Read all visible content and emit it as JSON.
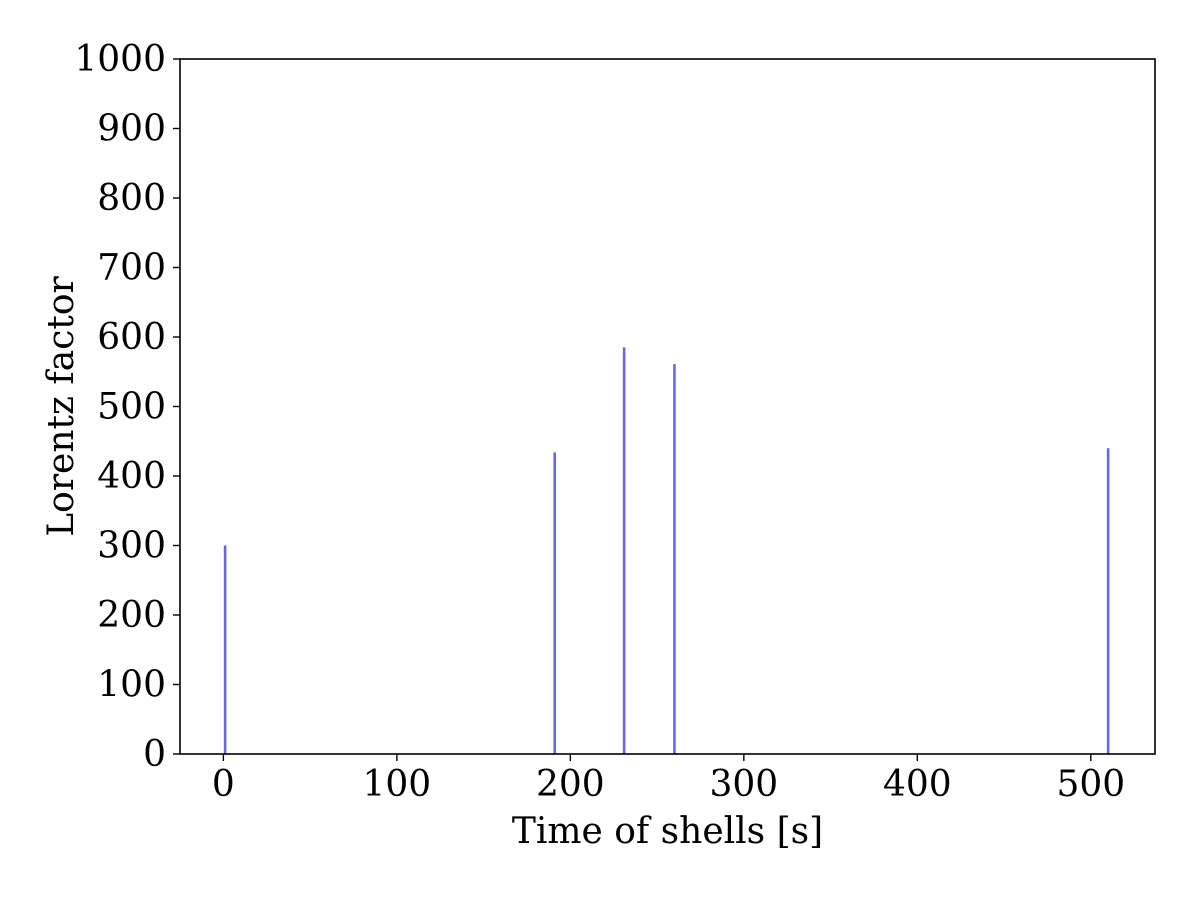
{
  "chart_data": {
    "type": "bar",
    "title": "",
    "xlabel": "Time of shells [s]",
    "ylabel": "Lorentz factor",
    "xlim": [
      -25,
      537
    ],
    "ylim": [
      0,
      1000
    ],
    "x_ticks": [
      0,
      100,
      200,
      300,
      400,
      500
    ],
    "y_ticks": [
      0,
      100,
      200,
      300,
      400,
      500,
      600,
      700,
      800,
      900,
      1000
    ],
    "grid": false,
    "series": [
      {
        "color": "#6666e6",
        "x": [
          1,
          191,
          231,
          260,
          510
        ],
        "values": [
          300,
          434,
          585,
          561,
          440
        ]
      }
    ]
  }
}
